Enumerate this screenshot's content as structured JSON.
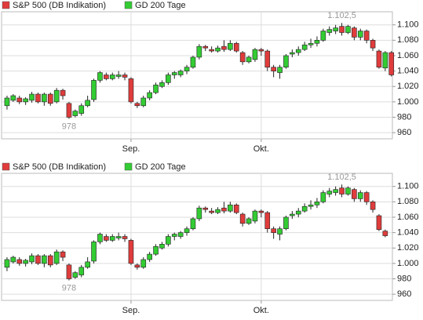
{
  "chart_data": [
    {
      "type": "candlestick",
      "legend": [
        {
          "name": "S&P 500 (DB Indikation)",
          "color": "#e03c3c"
        },
        {
          "name": "GD 200 Tage",
          "color": "#33cc33"
        }
      ],
      "up_color": "#33cc33",
      "down_color": "#e03c3c",
      "categories": [
        null,
        null,
        null,
        null,
        null,
        null,
        null,
        null,
        null,
        null,
        null,
        null,
        null,
        null,
        null,
        null,
        null,
        null,
        null,
        null,
        "Sep.",
        null,
        null,
        null,
        null,
        null,
        null,
        null,
        null,
        null,
        null,
        null,
        null,
        null,
        null,
        null,
        null,
        null,
        null,
        null,
        null,
        "Okt.",
        null,
        null,
        null,
        null,
        null,
        null,
        null,
        null,
        null,
        null,
        null,
        null,
        null,
        null,
        null,
        null,
        null,
        null,
        null,
        null,
        null
      ],
      "open": [
        995,
        1002,
        1005,
        1000,
        1002,
        1010,
        1000,
        1010,
        1000,
        1015,
        998,
        982,
        985,
        995,
        1003,
        1028,
        1035,
        1030,
        1033,
        1035,
        1030,
        998,
        995,
        1005,
        1012,
        1020,
        1025,
        1035,
        1035,
        1040,
        1045,
        1058,
        1072,
        1068,
        1066,
        1072,
        1068,
        1076,
        1064,
        1052,
        1055,
        1068,
        1066,
        1045,
        1038,
        1045,
        1062,
        1064,
        1068,
        1074,
        1076,
        1080,
        1090,
        1092,
        1098,
        1090,
        1096,
        1084,
        1092,
        1080,
        1066,
        1044,
        1064
      ],
      "high": [
        1008,
        1010,
        1008,
        1006,
        1013,
        1012,
        1012,
        1012,
        1018,
        1017,
        1000,
        990,
        998,
        1008,
        1030,
        1040,
        1038,
        1038,
        1040,
        1038,
        1032,
        1000,
        1008,
        1015,
        1025,
        1028,
        1038,
        1040,
        1042,
        1048,
        1060,
        1075,
        1074,
        1072,
        1073,
        1080,
        1080,
        1078,
        1066,
        1060,
        1070,
        1070,
        1068,
        1048,
        1048,
        1062,
        1068,
        1072,
        1078,
        1082,
        1085,
        1095,
        1098,
        1100,
        1102.5,
        1100,
        1098,
        1095,
        1094,
        1082,
        1068,
        1066,
        1066
      ],
      "low": [
        990,
        1000,
        997,
        996,
        999,
        998,
        995,
        995,
        998,
        1003,
        978,
        980,
        982,
        993,
        1000,
        1025,
        1028,
        1028,
        1030,
        1028,
        998,
        992,
        993,
        1002,
        1010,
        1018,
        1022,
        1030,
        1032,
        1036,
        1043,
        1055,
        1066,
        1064,
        1064,
        1065,
        1066,
        1064,
        1048,
        1050,
        1052,
        1060,
        1040,
        1032,
        1030,
        1043,
        1058,
        1060,
        1066,
        1070,
        1072,
        1078,
        1086,
        1088,
        1086,
        1088,
        1080,
        1080,
        1076,
        1066,
        1043,
        1040,
        1033
      ],
      "close": [
        1005,
        1008,
        1000,
        1004,
        1010,
        1000,
        1010,
        998,
        1015,
        1008,
        980,
        988,
        995,
        1002,
        1028,
        1038,
        1030,
        1035,
        1035,
        1032,
        1000,
        995,
        1005,
        1012,
        1022,
        1025,
        1035,
        1038,
        1040,
        1045,
        1058,
        1072,
        1070,
        1066,
        1070,
        1068,
        1076,
        1066,
        1052,
        1058,
        1068,
        1066,
        1045,
        1040,
        1045,
        1060,
        1064,
        1068,
        1074,
        1076,
        1080,
        1092,
        1094,
        1096,
        1090,
        1098,
        1084,
        1092,
        1080,
        1070,
        1045,
        1064,
        1035
      ],
      "min_label": {
        "value": 978,
        "label": "978"
      },
      "max_label": {
        "value": 1102.5,
        "label": "1.102,5"
      },
      "ylim": [
        952,
        1117
      ],
      "yticks": [
        960,
        980,
        {
          "value": 1000,
          "label": "1.000"
        },
        {
          "value": 1020,
          "label": "1.020"
        },
        {
          "value": 1040,
          "label": "1.040"
        },
        {
          "value": 1060,
          "label": "1.060"
        },
        {
          "value": 1080,
          "label": "1.080"
        },
        {
          "value": 1100,
          "label": "1.100"
        }
      ],
      "grid": true
    },
    {
      "type": "candlestick",
      "legend": [
        {
          "name": "S&P 500 (DB Indikation)",
          "color": "#e03c3c"
        },
        {
          "name": "GD 200 Tage",
          "color": "#33cc33"
        }
      ],
      "up_color": "#33cc33",
      "down_color": "#e03c3c",
      "categories": [
        null,
        null,
        null,
        null,
        null,
        null,
        null,
        null,
        null,
        null,
        null,
        null,
        null,
        null,
        null,
        null,
        null,
        null,
        null,
        null,
        "Sep.",
        null,
        null,
        null,
        null,
        null,
        null,
        null,
        null,
        null,
        null,
        null,
        null,
        null,
        null,
        null,
        null,
        null,
        null,
        null,
        null,
        "Okt.",
        null,
        null,
        null,
        null,
        null,
        null,
        null,
        null,
        null,
        null,
        null,
        null,
        null,
        null,
        null,
        null,
        null,
        null,
        null,
        null
      ],
      "open": [
        995,
        1002,
        1005,
        1000,
        1002,
        1010,
        1000,
        1010,
        1000,
        1015,
        998,
        982,
        985,
        995,
        1003,
        1028,
        1035,
        1030,
        1033,
        1035,
        1030,
        998,
        995,
        1005,
        1012,
        1020,
        1025,
        1035,
        1035,
        1040,
        1045,
        1058,
        1072,
        1068,
        1066,
        1072,
        1068,
        1076,
        1064,
        1052,
        1055,
        1068,
        1066,
        1045,
        1038,
        1045,
        1062,
        1064,
        1068,
        1074,
        1076,
        1080,
        1090,
        1092,
        1098,
        1090,
        1096,
        1084,
        1092,
        1080,
        1062,
        1042
      ],
      "high": [
        1008,
        1010,
        1008,
        1006,
        1013,
        1012,
        1012,
        1012,
        1018,
        1017,
        1000,
        990,
        998,
        1008,
        1030,
        1040,
        1038,
        1038,
        1040,
        1038,
        1032,
        1000,
        1008,
        1015,
        1025,
        1028,
        1038,
        1040,
        1042,
        1048,
        1060,
        1075,
        1074,
        1072,
        1073,
        1080,
        1080,
        1078,
        1066,
        1060,
        1070,
        1070,
        1068,
        1048,
        1048,
        1062,
        1068,
        1072,
        1078,
        1082,
        1085,
        1095,
        1098,
        1100,
        1102.5,
        1100,
        1098,
        1095,
        1094,
        1082,
        1064,
        1044
      ],
      "low": [
        990,
        1000,
        997,
        996,
        999,
        998,
        995,
        995,
        998,
        1003,
        978,
        980,
        982,
        993,
        1000,
        1025,
        1028,
        1028,
        1030,
        1028,
        998,
        992,
        993,
        1002,
        1010,
        1018,
        1022,
        1030,
        1032,
        1036,
        1043,
        1055,
        1066,
        1064,
        1064,
        1065,
        1066,
        1064,
        1048,
        1050,
        1052,
        1060,
        1040,
        1032,
        1030,
        1043,
        1058,
        1060,
        1066,
        1070,
        1072,
        1078,
        1086,
        1088,
        1086,
        1088,
        1080,
        1080,
        1076,
        1066,
        1042,
        1034
      ],
      "close": [
        1005,
        1008,
        1000,
        1004,
        1010,
        1000,
        1010,
        998,
        1015,
        1008,
        980,
        988,
        995,
        1002,
        1028,
        1038,
        1030,
        1035,
        1035,
        1032,
        1000,
        995,
        1005,
        1012,
        1022,
        1025,
        1035,
        1038,
        1040,
        1045,
        1058,
        1072,
        1070,
        1066,
        1070,
        1068,
        1076,
        1066,
        1052,
        1058,
        1068,
        1066,
        1045,
        1040,
        1045,
        1060,
        1064,
        1068,
        1074,
        1076,
        1080,
        1092,
        1094,
        1096,
        1090,
        1098,
        1084,
        1092,
        1080,
        1070,
        1044,
        1036
      ],
      "min_label": {
        "value": 978,
        "label": "978"
      },
      "max_label": {
        "value": 1102.5,
        "label": "1.102,5"
      },
      "ylim": [
        952,
        1117
      ],
      "yticks": [
        960,
        980,
        {
          "value": 1000,
          "label": "1.000"
        },
        {
          "value": 1020,
          "label": "1.020"
        },
        {
          "value": 1040,
          "label": "1.040"
        },
        {
          "value": 1060,
          "label": "1.060"
        },
        {
          "value": 1080,
          "label": "1.080"
        },
        {
          "value": 1100,
          "label": "1.100"
        }
      ],
      "grid": true
    }
  ]
}
